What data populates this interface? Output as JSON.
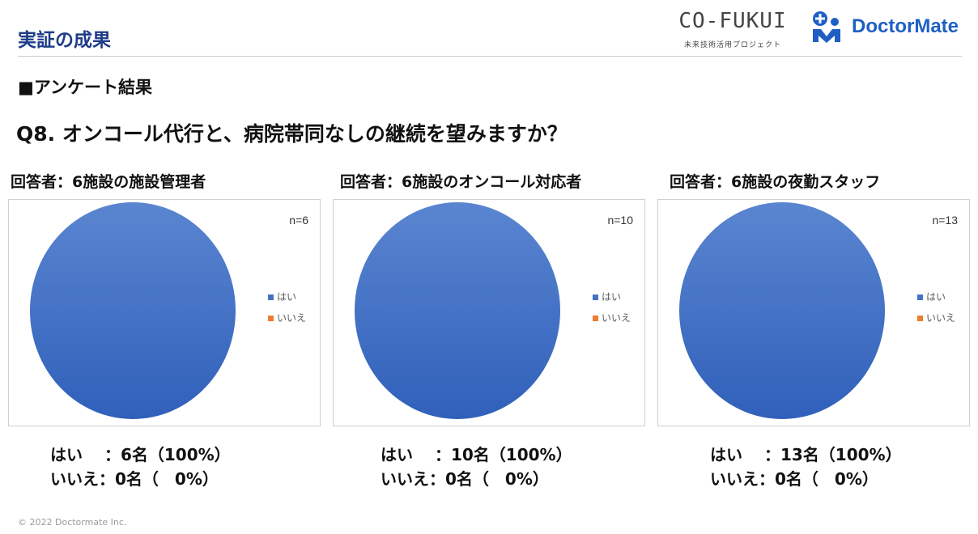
{
  "header": {
    "title": "実証の成果",
    "cofukui_logo": "CO-FUKUI",
    "cofukui_sub": "未来技術活用プロジェクト",
    "doctormate_logo": "DoctorMate"
  },
  "section_title": "■アンケート結果",
  "question": "Q8.  オンコール代行と、病院帯同なしの継続を望みますか？",
  "colors": {
    "yes": "#4472c4",
    "no": "#ed7d31",
    "title": "#1f3c88"
  },
  "panels": [
    {
      "label": "回答者：6施設の施設管理者",
      "summary_yes": "はい　 ：6名（100%）",
      "summary_no": "いいえ：0名（　0%）"
    },
    {
      "label": "回答者：6施設のオンコール対応者",
      "summary_yes": "はい　 ：10名（100%）",
      "summary_no": "いいえ：0名（　0%）"
    },
    {
      "label": "回答者：6施設の夜勤スタッフ",
      "summary_yes": "はい　 ：13名（100%）",
      "summary_no": "いいえ：0名（　0%）"
    }
  ],
  "chart_data": [
    {
      "type": "pie",
      "title": "",
      "annotation": "n=6",
      "categories": [
        "はい",
        "いいえ"
      ],
      "values": [
        6,
        0
      ],
      "legend": "right"
    },
    {
      "type": "pie",
      "title": "",
      "annotation": "n=10",
      "categories": [
        "はい",
        "いいえ"
      ],
      "values": [
        10,
        0
      ],
      "legend": "right"
    },
    {
      "type": "pie",
      "title": "",
      "annotation": "n=13",
      "categories": [
        "はい",
        "いいえ"
      ],
      "values": [
        13,
        0
      ],
      "legend": "right"
    }
  ],
  "footer": {
    "copyright": "© 2022 Doctormate Inc."
  }
}
